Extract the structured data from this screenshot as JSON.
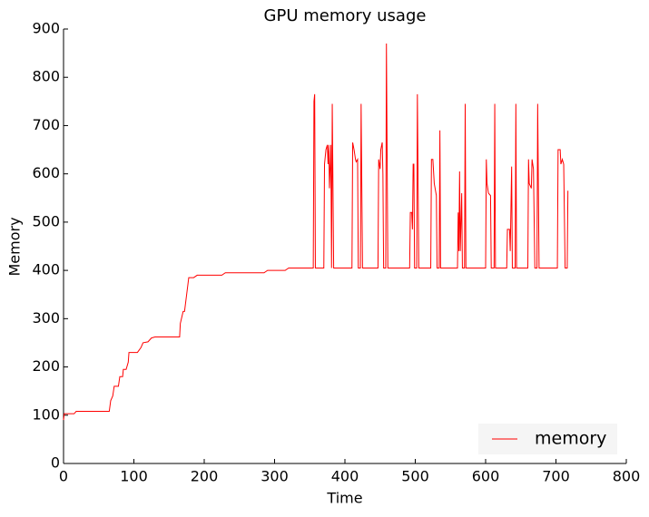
{
  "chart_data": {
    "type": "line",
    "title": "GPU memory usage",
    "x_label": "Time",
    "y_label": "Memory",
    "x": [
      0,
      1,
      15,
      18,
      65,
      67,
      70,
      72,
      78,
      80,
      84,
      85,
      89,
      92,
      93,
      105,
      110,
      113,
      120,
      125,
      130,
      165,
      166,
      170,
      172,
      175,
      178,
      185,
      190,
      225,
      230,
      285,
      290,
      315,
      320,
      355,
      356,
      357,
      358,
      370,
      371,
      373,
      375,
      376,
      377,
      378,
      380,
      381,
      382,
      384,
      410,
      411,
      413,
      415,
      416,
      418,
      419,
      422,
      423,
      425,
      447,
      448,
      450,
      451,
      453,
      454,
      455,
      458,
      459,
      461,
      492,
      493,
      495,
      496,
      497,
      498,
      499,
      502,
      503,
      505,
      522,
      523,
      525,
      527,
      530,
      531,
      534,
      535,
      536,
      560,
      561,
      562,
      563,
      564,
      566,
      567,
      570,
      571,
      572,
      600,
      601,
      602,
      604,
      607,
      608,
      612,
      613,
      614,
      630,
      631,
      634,
      635,
      637,
      638,
      642,
      643,
      644,
      660,
      661,
      662,
      665,
      666,
      668,
      670,
      673,
      674,
      676,
      702,
      703,
      706,
      707,
      709,
      711,
      713,
      716,
      717
    ],
    "series": [
      {
        "name": "memory",
        "color": "#ff0000",
        "values": [
          90,
          103,
          103,
          108,
          108,
          130,
          140,
          160,
          160,
          180,
          180,
          195,
          195,
          210,
          230,
          230,
          240,
          250,
          252,
          260,
          262,
          262,
          290,
          315,
          315,
          350,
          385,
          385,
          390,
          390,
          395,
          395,
          400,
          400,
          405,
          405,
          750,
          765,
          405,
          405,
          620,
          650,
          660,
          620,
          660,
          570,
          660,
          405,
          745,
          405,
          405,
          665,
          650,
          630,
          625,
          630,
          405,
          405,
          745,
          405,
          405,
          630,
          610,
          650,
          665,
          600,
          405,
          405,
          870,
          405,
          405,
          520,
          520,
          485,
          620,
          620,
          405,
          405,
          765,
          405,
          405,
          630,
          630,
          580,
          555,
          405,
          405,
          690,
          405,
          405,
          520,
          440,
          605,
          440,
          560,
          405,
          405,
          745,
          405,
          405,
          630,
          580,
          560,
          555,
          405,
          405,
          745,
          405,
          405,
          485,
          485,
          440,
          615,
          405,
          405,
          745,
          405,
          405,
          630,
          580,
          570,
          630,
          610,
          405,
          405,
          745,
          405,
          405,
          650,
          650,
          620,
          630,
          620,
          405,
          405,
          565
        ]
      }
    ],
    "xlim": [
      0,
      800
    ],
    "ylim": [
      0,
      900
    ],
    "xticks": [
      0,
      100,
      200,
      300,
      400,
      500,
      600,
      700,
      800
    ],
    "yticks": [
      0,
      100,
      200,
      300,
      400,
      500,
      600,
      700,
      800,
      900
    ],
    "legend": "lower right"
  }
}
